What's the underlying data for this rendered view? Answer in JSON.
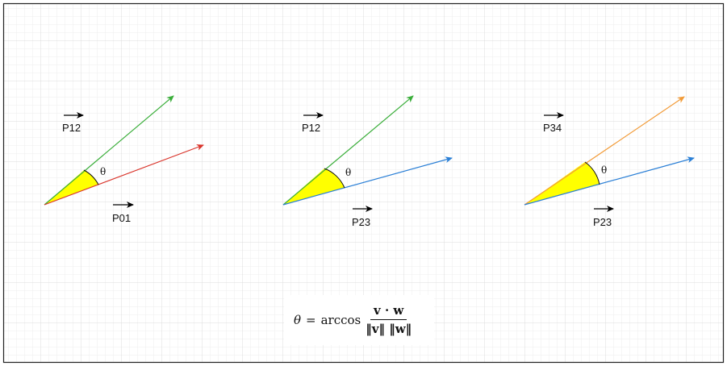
{
  "colors": {
    "grid": "#e6e6e6",
    "border": "#222222",
    "red": "#d9342b",
    "green": "#3aae3a",
    "blue": "#2a7fd6",
    "orange": "#f29b38",
    "wedge_fill": "#ffff00",
    "label_arrow": "#000000"
  },
  "diagrams": [
    {
      "vector_a": "P12",
      "vector_b": "P01",
      "angle_label": "θ",
      "color_a": "green",
      "color_b": "red"
    },
    {
      "vector_a": "P12",
      "vector_b": "P23",
      "angle_label": "θ",
      "color_a": "green",
      "color_b": "blue"
    },
    {
      "vector_a": "P34",
      "vector_b": "P23",
      "angle_label": "θ",
      "color_a": "orange",
      "color_b": "blue"
    }
  ],
  "formula": {
    "lhs": "θ",
    "equals": "=",
    "func": "arccos",
    "numerator": "v · w",
    "denominator": "‖v‖ ‖w‖"
  }
}
